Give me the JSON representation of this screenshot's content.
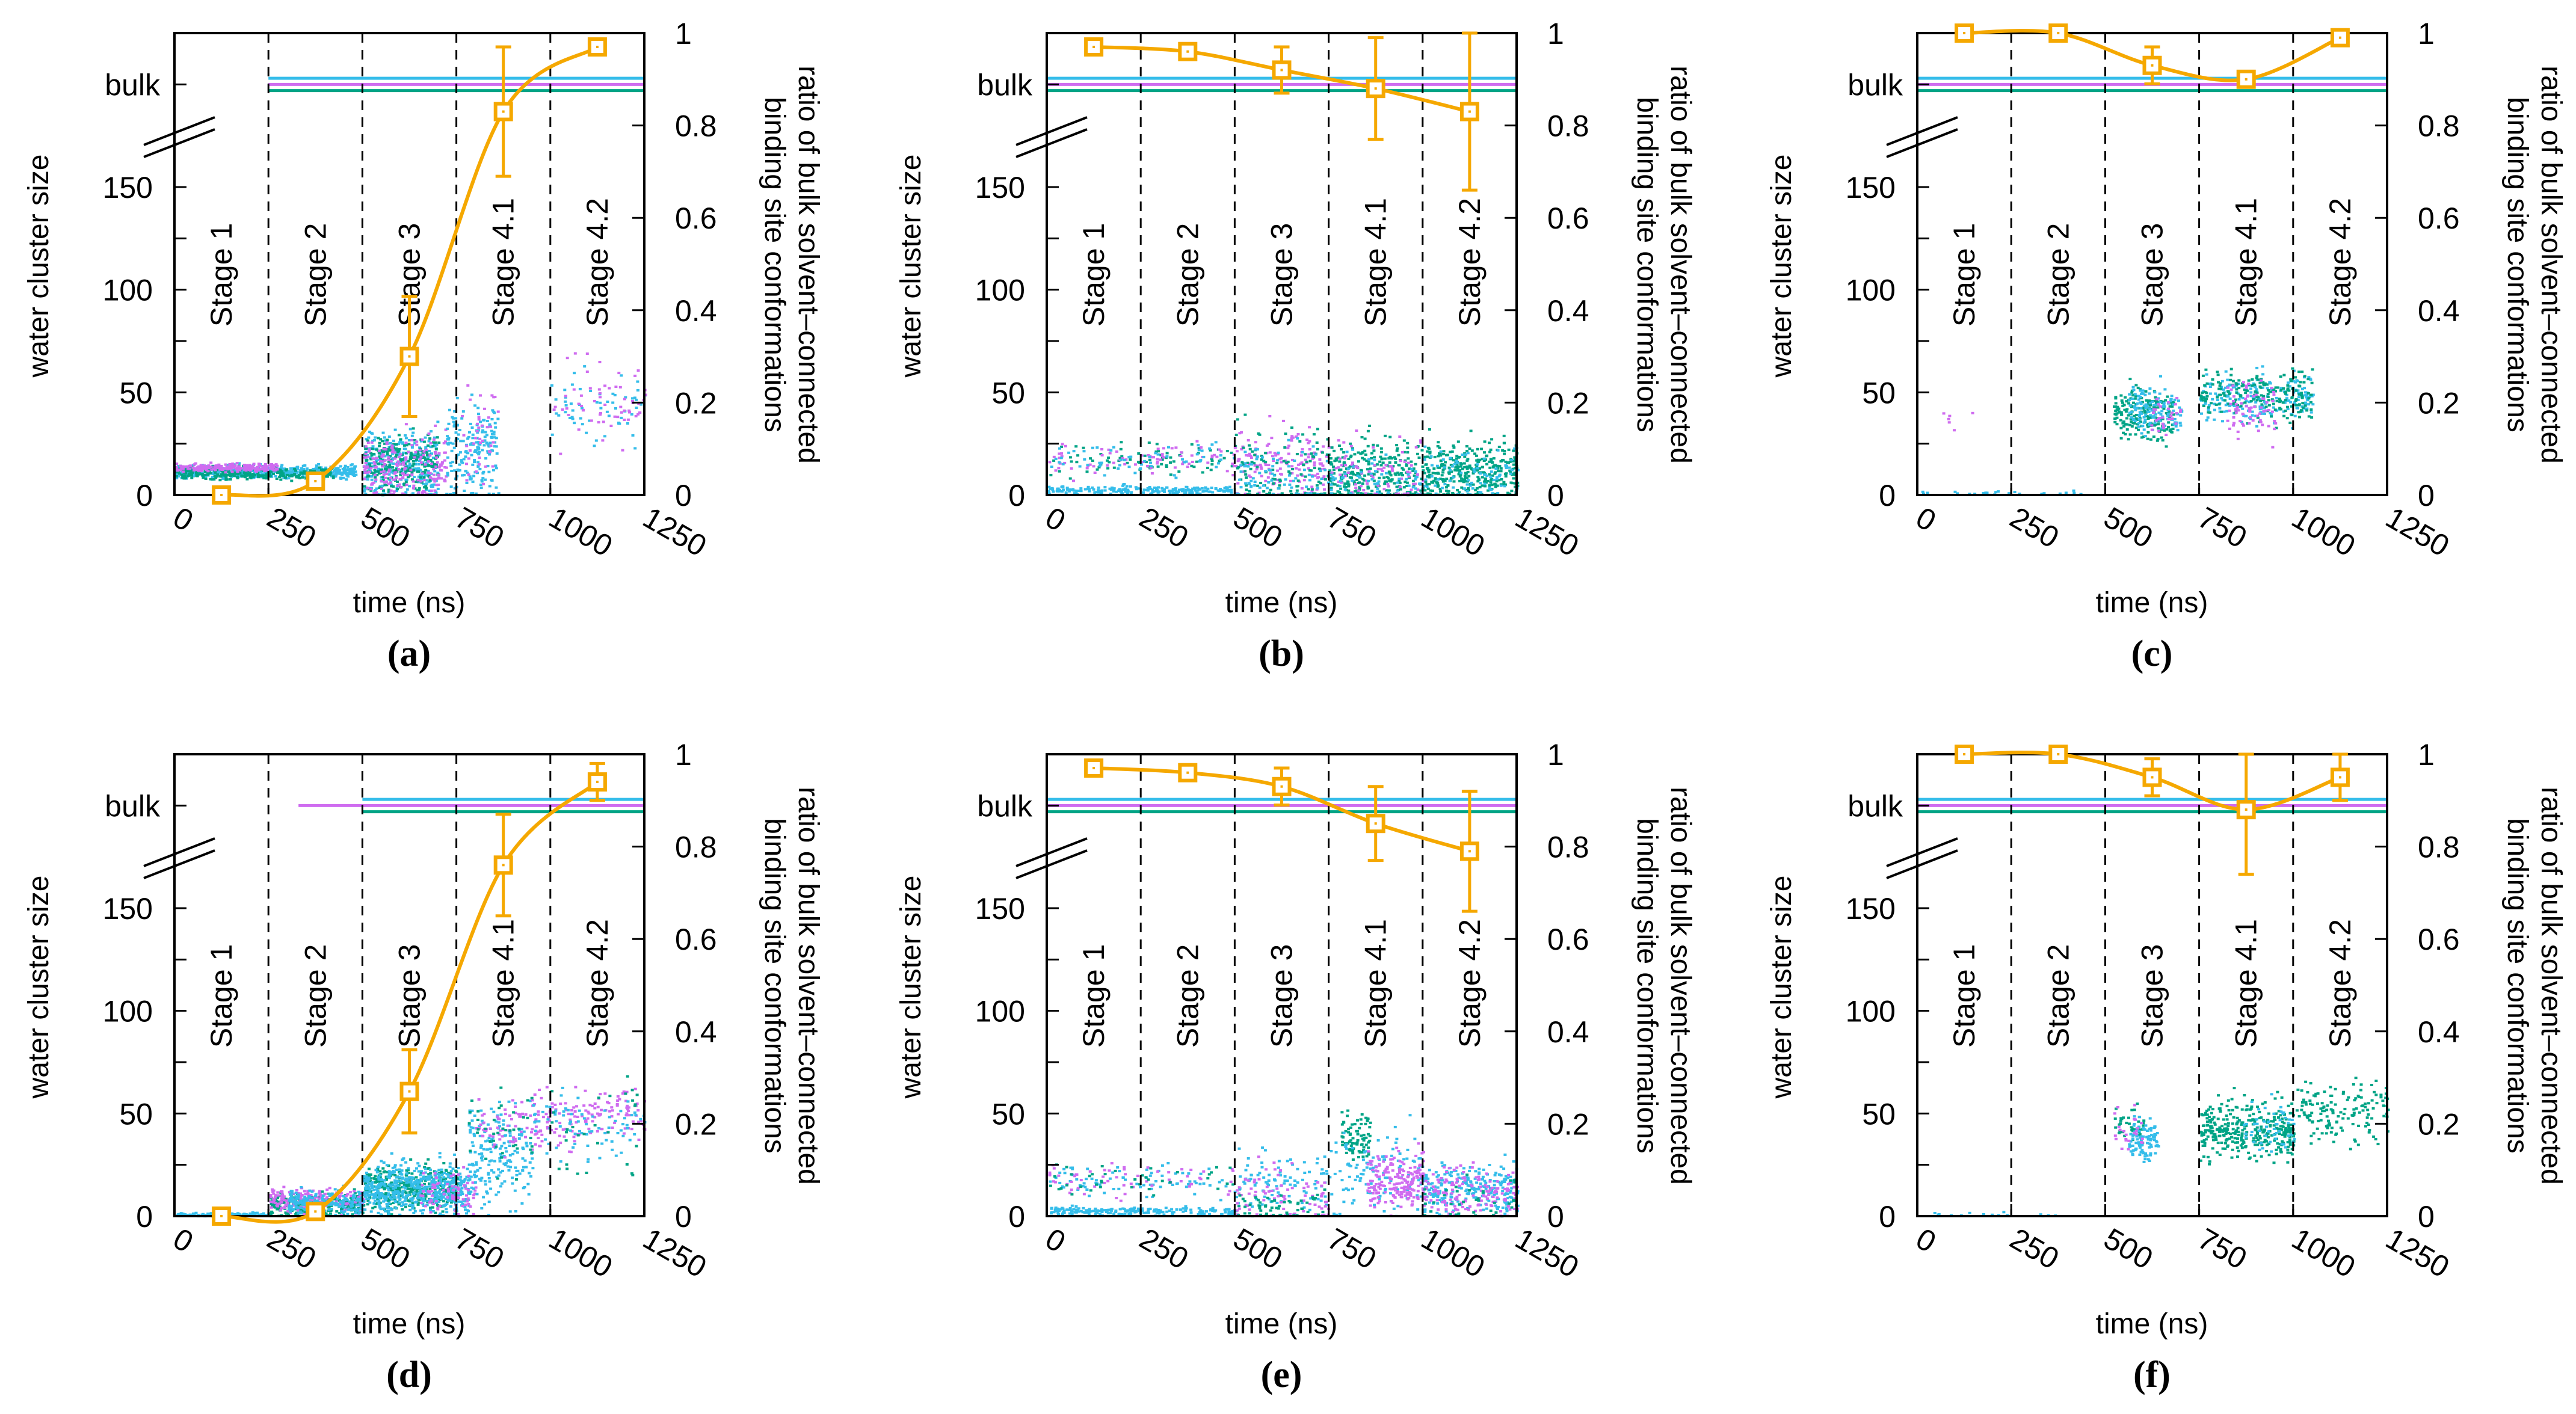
{
  "chart_data": {
    "type": "scatter",
    "colors": {
      "orange": "#f5a800",
      "cyan": "#35bdea",
      "magenta": "#cf6cf0",
      "green": "#00a486"
    },
    "shared": {
      "xlabel": "time (ns)",
      "ylabel_left": "water cluster size",
      "ylabel_right_line1": "ratio of bulk solvent–connected",
      "ylabel_right_line2": "binding site conformations",
      "xlim": [
        0,
        1250
      ],
      "x_ticks": [
        "0",
        "250",
        "500",
        "750",
        "1000",
        "1250"
      ],
      "ylim_left": [
        0,
        225
      ],
      "y_left_ticks": [
        "0",
        "50",
        "100",
        "150"
      ],
      "y_left_bulk_label": "bulk",
      "y_left_bulk_value": 200,
      "ylim_right": [
        0,
        1
      ],
      "y_right_ticks": [
        "0",
        "0.2",
        "0.4",
        "0.6",
        "0.8",
        "1"
      ],
      "stage_boundaries": [
        250,
        500,
        750,
        1000
      ],
      "stages": [
        "Stage 1",
        "Stage 2",
        "Stage 3",
        "Stage 4.1",
        "Stage 4.2"
      ],
      "stage_x": [
        125,
        375,
        625,
        875,
        1125
      ]
    },
    "panels": [
      {
        "label": "(a)",
        "ratio": [
          0.0,
          0.03,
          0.3,
          0.83,
          0.97
        ],
        "err_low": [
          null,
          null,
          0.17,
          0.69,
          null
        ],
        "err_high": [
          null,
          null,
          0.43,
          0.97,
          null
        ],
        "bulk": {
          "cyan": 250,
          "magenta": 250,
          "green": 250
        },
        "clusters": [
          [
            "cyan",
            0,
            480,
            12,
            1.5,
            500
          ],
          [
            "green",
            0,
            420,
            11,
            1.5,
            300
          ],
          [
            "magenta",
            0,
            270,
            14,
            1,
            200
          ],
          [
            "cyan",
            500,
            700,
            15,
            8,
            300
          ],
          [
            "green",
            500,
            700,
            16,
            7,
            250
          ],
          [
            "magenta",
            500,
            720,
            14,
            8,
            200
          ],
          [
            "cyan",
            720,
            860,
            22,
            12,
            200
          ],
          [
            "magenta",
            760,
            860,
            30,
            15,
            40
          ],
          [
            "cyan",
            1000,
            1250,
            45,
            9,
            60
          ],
          [
            "magenta",
            1000,
            1250,
            45,
            10,
            60
          ]
        ]
      },
      {
        "label": "(b)",
        "ratio": [
          0.97,
          0.96,
          0.92,
          0.88,
          0.83
        ],
        "err_low": [
          null,
          null,
          0.87,
          0.77,
          0.66
        ],
        "err_high": [
          null,
          null,
          0.97,
          0.99,
          1.0
        ],
        "bulk": {
          "cyan": 0,
          "magenta": 0,
          "green": 0
        },
        "clusters": [
          [
            "cyan",
            0,
            500,
            3,
            1,
            200
          ],
          [
            "green",
            0,
            500,
            18,
            4,
            80
          ],
          [
            "magenta",
            0,
            500,
            18,
            4,
            80
          ],
          [
            "cyan",
            0,
            500,
            18,
            4,
            60
          ],
          [
            "magenta",
            500,
            750,
            15,
            8,
            150
          ],
          [
            "green",
            500,
            750,
            12,
            10,
            120
          ],
          [
            "cyan",
            500,
            750,
            10,
            8,
            80
          ],
          [
            "green",
            750,
            1000,
            10,
            9,
            300
          ],
          [
            "magenta",
            750,
            1000,
            12,
            10,
            80
          ],
          [
            "cyan",
            750,
            1000,
            8,
            6,
            60
          ],
          [
            "green",
            1000,
            1250,
            12,
            7,
            350
          ],
          [
            "cyan",
            1000,
            1250,
            10,
            6,
            80
          ]
        ]
      },
      {
        "label": "(c)",
        "ratio": [
          1.0,
          1.0,
          0.93,
          0.9,
          0.99
        ],
        "err_low": [
          null,
          null,
          0.89,
          null,
          null
        ],
        "err_high": [
          null,
          null,
          0.97,
          null,
          null
        ],
        "bulk": {
          "cyan": 0,
          "magenta": 0,
          "green": 0
        },
        "clusters": [
          [
            "green",
            520,
            680,
            40,
            6,
            200
          ],
          [
            "cyan",
            560,
            700,
            42,
            6,
            120
          ],
          [
            "magenta",
            620,
            700,
            40,
            5,
            30
          ],
          [
            "cyan",
            750,
            1050,
            48,
            6,
            200
          ],
          [
            "green",
            750,
            1050,
            50,
            6,
            200
          ],
          [
            "magenta",
            820,
            950,
            42,
            6,
            70
          ],
          [
            "cyan",
            0,
            450,
            1,
            1,
            25
          ],
          [
            "magenta",
            50,
            150,
            37,
            3,
            6
          ]
        ]
      },
      {
        "label": "(d)",
        "ratio": [
          0.0,
          0.01,
          0.27,
          0.76,
          0.94
        ],
        "err_low": [
          null,
          null,
          0.18,
          0.65,
          0.9
        ],
        "err_high": [
          null,
          null,
          0.36,
          0.87,
          0.98
        ],
        "bulk": {
          "cyan": 500,
          "magenta": 330,
          "green": 500
        },
        "clusters": [
          [
            "cyan",
            0,
            250,
            1,
            0.5,
            150
          ],
          [
            "green",
            250,
            500,
            6,
            3,
            250
          ],
          [
            "magenta",
            250,
            500,
            8,
            3,
            200
          ],
          [
            "cyan",
            300,
            500,
            7,
            3,
            200
          ],
          [
            "green",
            500,
            750,
            14,
            5,
            400
          ],
          [
            "cyan",
            500,
            780,
            14,
            6,
            500
          ],
          [
            "magenta",
            650,
            800,
            12,
            6,
            80
          ],
          [
            "cyan",
            780,
            950,
            30,
            12,
            200
          ],
          [
            "magenta",
            800,
            950,
            45,
            6,
            60
          ],
          [
            "green",
            780,
            950,
            40,
            10,
            40
          ],
          [
            "magenta",
            950,
            1250,
            48,
            7,
            150
          ],
          [
            "cyan",
            950,
            1250,
            45,
            8,
            80
          ],
          [
            "green",
            1000,
            1250,
            40,
            12,
            30
          ]
        ]
      },
      {
        "label": "(e)",
        "ratio": [
          0.97,
          0.96,
          0.93,
          0.85,
          0.79
        ],
        "err_low": [
          null,
          null,
          0.89,
          0.77,
          0.66
        ],
        "err_high": [
          null,
          null,
          0.97,
          0.93,
          0.92
        ],
        "bulk": {
          "cyan": 0,
          "magenta": 0,
          "green": 0
        },
        "clusters": [
          [
            "cyan",
            0,
            500,
            3,
            1,
            200
          ],
          [
            "cyan",
            0,
            500,
            18,
            4,
            80
          ],
          [
            "magenta",
            0,
            500,
            18,
            4,
            60
          ],
          [
            "green",
            0,
            500,
            18,
            4,
            40
          ],
          [
            "cyan",
            500,
            750,
            18,
            8,
            100
          ],
          [
            "magenta",
            500,
            750,
            10,
            8,
            80
          ],
          [
            "green",
            500,
            750,
            5,
            4,
            60
          ],
          [
            "green",
            780,
            860,
            40,
            6,
            80
          ],
          [
            "cyan",
            750,
            1000,
            20,
            12,
            120
          ],
          [
            "magenta",
            850,
            1000,
            18,
            6,
            200
          ],
          [
            "cyan",
            1000,
            1250,
            14,
            6,
            250
          ],
          [
            "magenta",
            1000,
            1250,
            12,
            6,
            150
          ],
          [
            "green",
            1000,
            1250,
            8,
            6,
            40
          ]
        ]
      },
      {
        "label": "(f)",
        "ratio": [
          1.0,
          1.0,
          0.95,
          0.88,
          0.95
        ],
        "err_low": [
          null,
          null,
          0.91,
          0.74,
          0.9
        ],
        "err_high": [
          null,
          null,
          0.99,
          1.0,
          1.0
        ],
        "bulk": {
          "cyan": 0,
          "magenta": 0,
          "green": 0
        },
        "clusters": [
          [
            "green",
            520,
            600,
            45,
            5,
            40
          ],
          [
            "cyan",
            560,
            640,
            38,
            5,
            100
          ],
          [
            "magenta",
            520,
            600,
            42,
            6,
            25
          ],
          [
            "green",
            750,
            1000,
            42,
            7,
            350
          ],
          [
            "cyan",
            850,
            1000,
            45,
            7,
            50
          ],
          [
            "green",
            1000,
            1250,
            52,
            7,
            150
          ],
          [
            "cyan",
            0,
            400,
            1,
            1,
            15
          ]
        ]
      }
    ]
  }
}
